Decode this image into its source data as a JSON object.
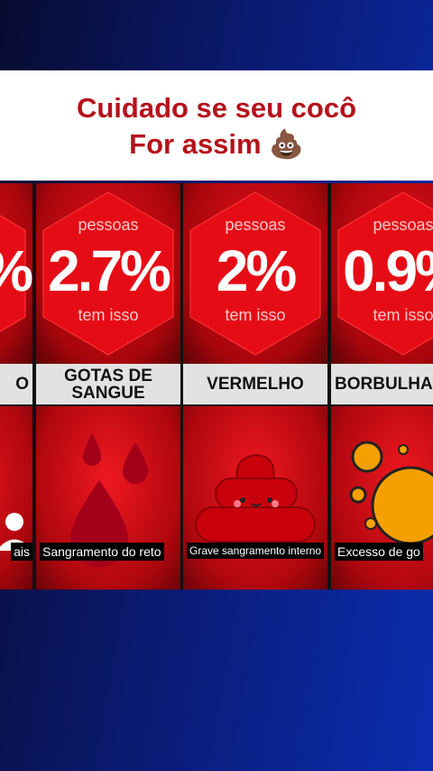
{
  "header": {
    "title_lines": [
      "Cuidado se seu cocô",
      "For assim 💩"
    ]
  },
  "cards": [
    {
      "percent": "%",
      "label": "O",
      "caption": "ais"
    },
    {
      "above": "pessoas",
      "percent": "2.7%",
      "below": "tem isso",
      "label": "GOTAS DE SANGUE",
      "caption": "Sangramento do reto"
    },
    {
      "above": "pessoas",
      "percent": "2%",
      "below": "tem isso",
      "label": "VERMELHO",
      "caption": "Grave sangramento interno"
    },
    {
      "above": "pessoas",
      "percent": "0.9%",
      "below": "tem isso",
      "label": "BORBULHA",
      "caption": "Excesso de go"
    }
  ]
}
